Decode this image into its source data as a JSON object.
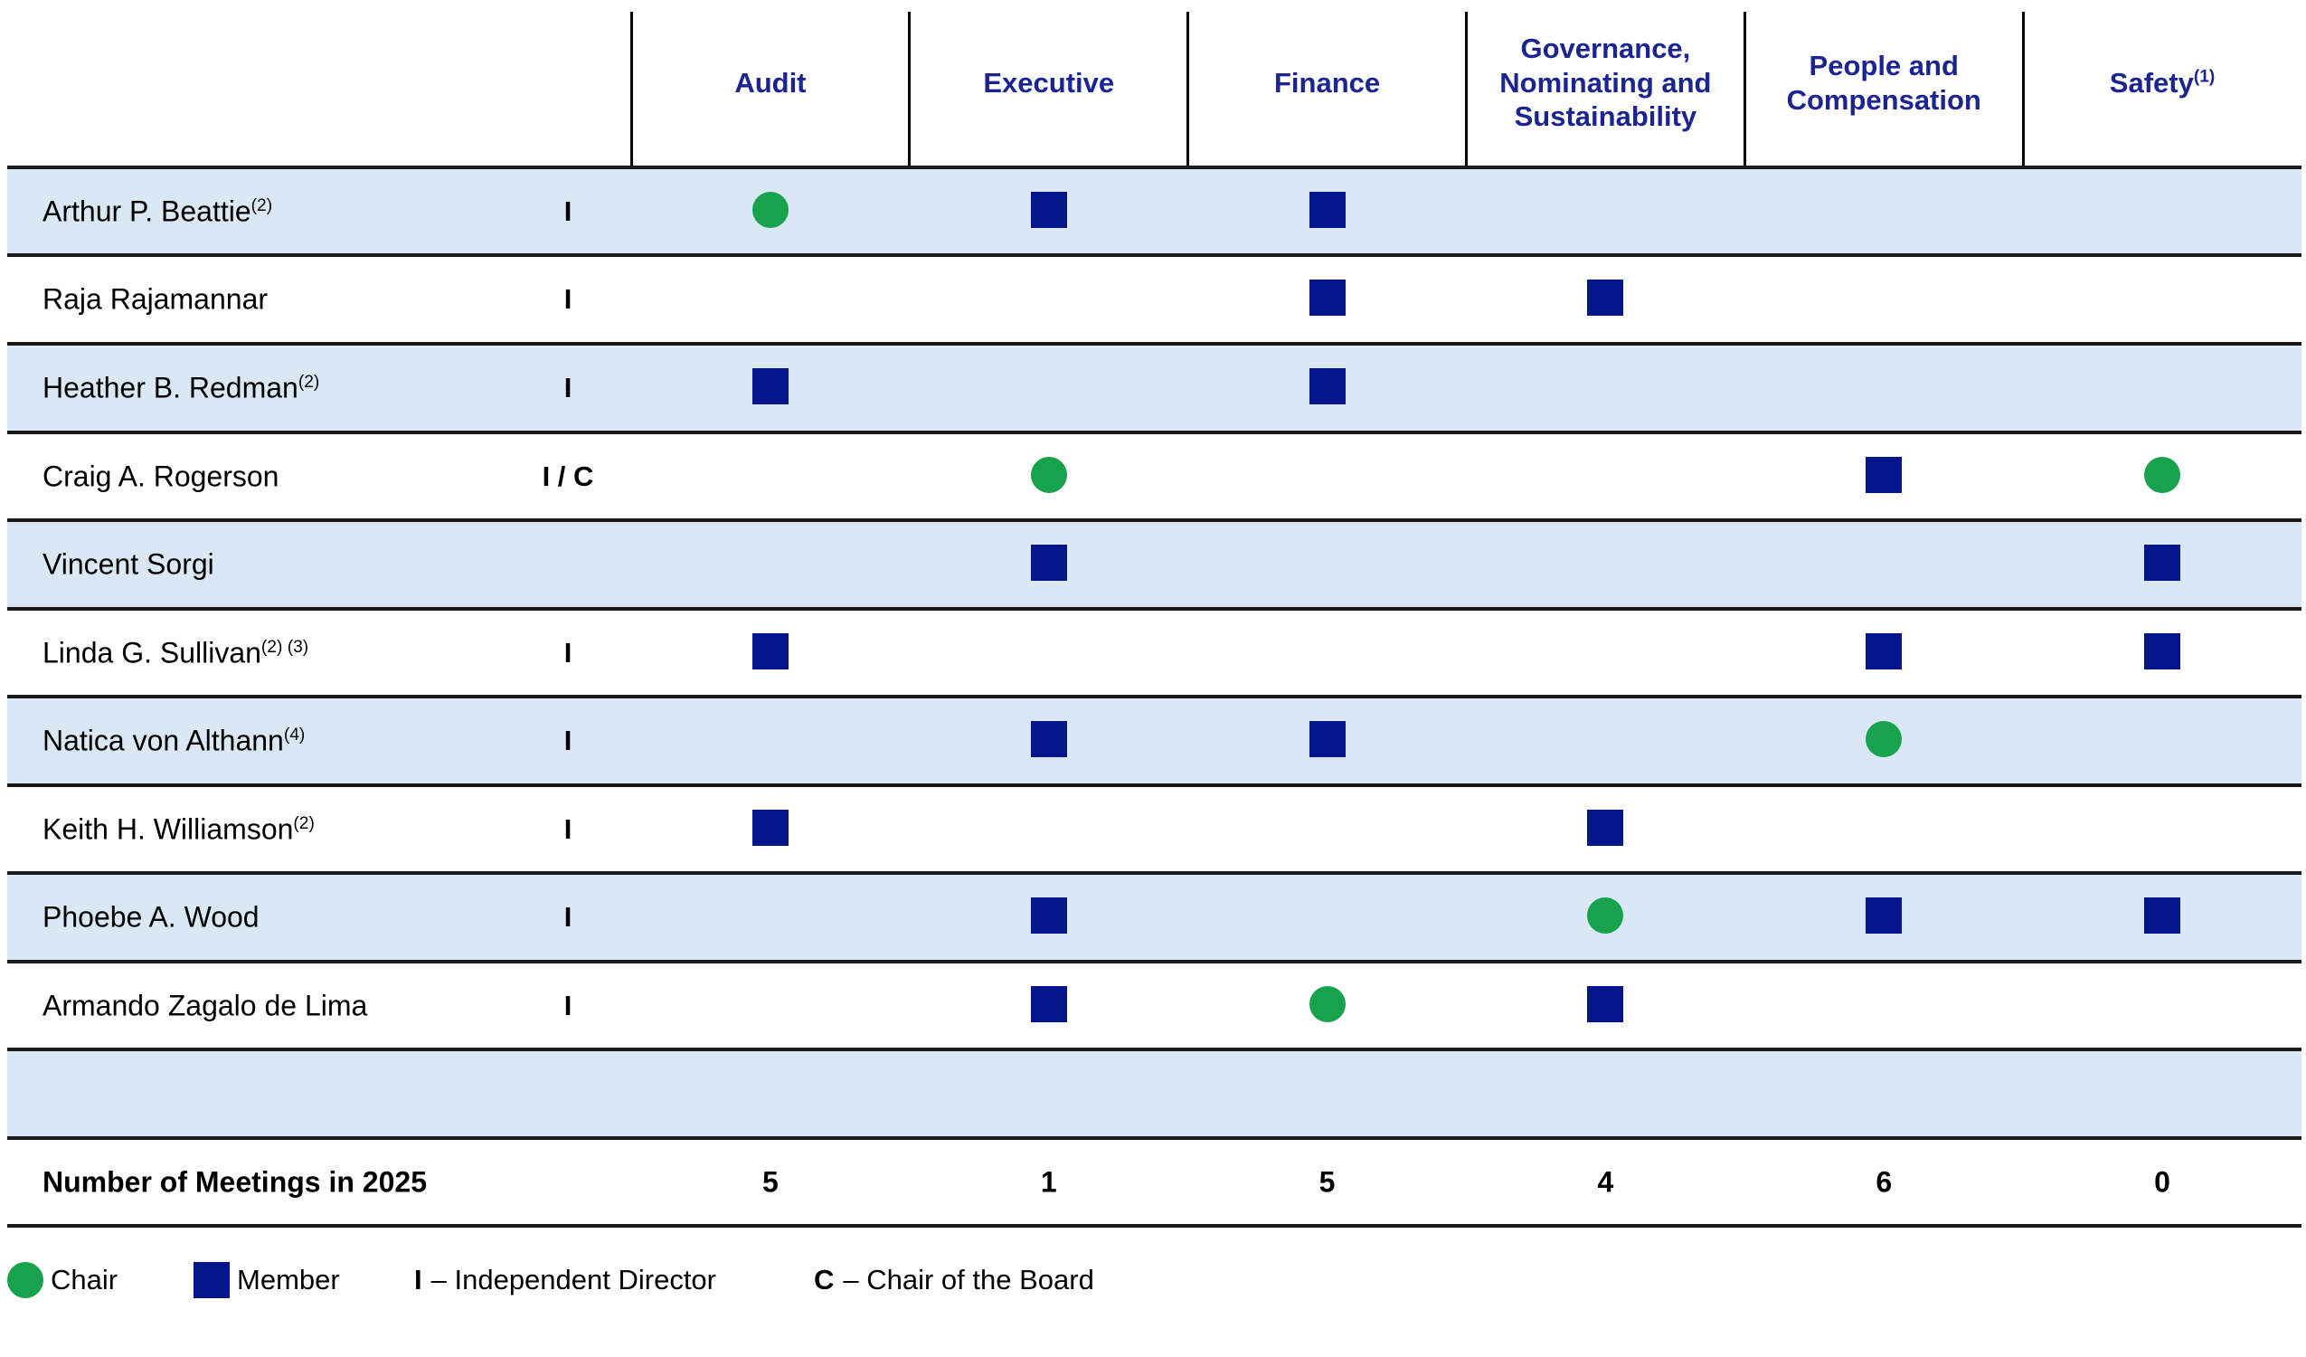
{
  "header": {
    "columns": [
      {
        "key": "audit",
        "label": "Audit",
        "sup": ""
      },
      {
        "key": "executive",
        "label": "Executive",
        "sup": ""
      },
      {
        "key": "finance",
        "label": "Finance",
        "sup": ""
      },
      {
        "key": "governance",
        "label": "Governance, Nominating and Sustainability",
        "sup": ""
      },
      {
        "key": "people-compensation",
        "label": "People and Compensation",
        "sup": ""
      },
      {
        "key": "safety",
        "label": "Safety",
        "sup": "(1)"
      }
    ]
  },
  "rows": [
    {
      "name": "Arthur P. Beattie",
      "sup": "(2)",
      "independence": "I",
      "memberships": [
        "chair",
        "member",
        "member",
        "",
        "",
        ""
      ]
    },
    {
      "name": "Raja Rajamannar",
      "sup": "",
      "independence": "I",
      "memberships": [
        "",
        "",
        "member",
        "member",
        "",
        ""
      ]
    },
    {
      "name": "Heather B. Redman",
      "sup": "(2)",
      "independence": "I",
      "memberships": [
        "member",
        "",
        "member",
        "",
        "",
        ""
      ]
    },
    {
      "name": "Craig A. Rogerson",
      "sup": "",
      "independence": "I / C",
      "memberships": [
        "",
        "chair",
        "",
        "",
        "member",
        "chair"
      ]
    },
    {
      "name": "Vincent Sorgi",
      "sup": "",
      "independence": "",
      "memberships": [
        "",
        "member",
        "",
        "",
        "",
        "member"
      ]
    },
    {
      "name": "Linda G. Sullivan",
      "sup": "(2) (3)",
      "independence": "I",
      "memberships": [
        "member",
        "",
        "",
        "",
        "member",
        "member"
      ]
    },
    {
      "name": "Natica von Althann",
      "sup": "(4)",
      "independence": "I",
      "memberships": [
        "",
        "member",
        "member",
        "",
        "chair",
        ""
      ]
    },
    {
      "name": "Keith H. Williamson",
      "sup": "(2)",
      "independence": "I",
      "memberships": [
        "member",
        "",
        "",
        "member",
        "",
        ""
      ]
    },
    {
      "name": "Phoebe A. Wood",
      "sup": "",
      "independence": "I",
      "memberships": [
        "",
        "member",
        "",
        "chair",
        "member",
        "member"
      ]
    },
    {
      "name": "Armando Zagalo de Lima",
      "sup": "",
      "independence": "I",
      "memberships": [
        "",
        "member",
        "chair",
        "member",
        "",
        ""
      ]
    },
    {
      "name": "",
      "sup": "",
      "independence": "",
      "memberships": [
        "",
        "",
        "",
        "",
        "",
        ""
      ]
    }
  ],
  "meetings": {
    "label": "Number of Meetings in 2025",
    "values": [
      "5",
      "1",
      "5",
      "4",
      "6",
      "0"
    ]
  },
  "legend": {
    "chair_label": "Chair",
    "member_label": "Member",
    "independent_abbr": "I",
    "independent_label": "– Independent Director",
    "board_chair_abbr": "C",
    "board_chair_label": "– Chair of the Board"
  },
  "colors": {
    "chair_green": "#17A24B",
    "member_navy": "#05168C",
    "header_navy": "#1B2490",
    "row_light_blue": "#D9E8F4",
    "grid_line": "#1b1b1b"
  }
}
